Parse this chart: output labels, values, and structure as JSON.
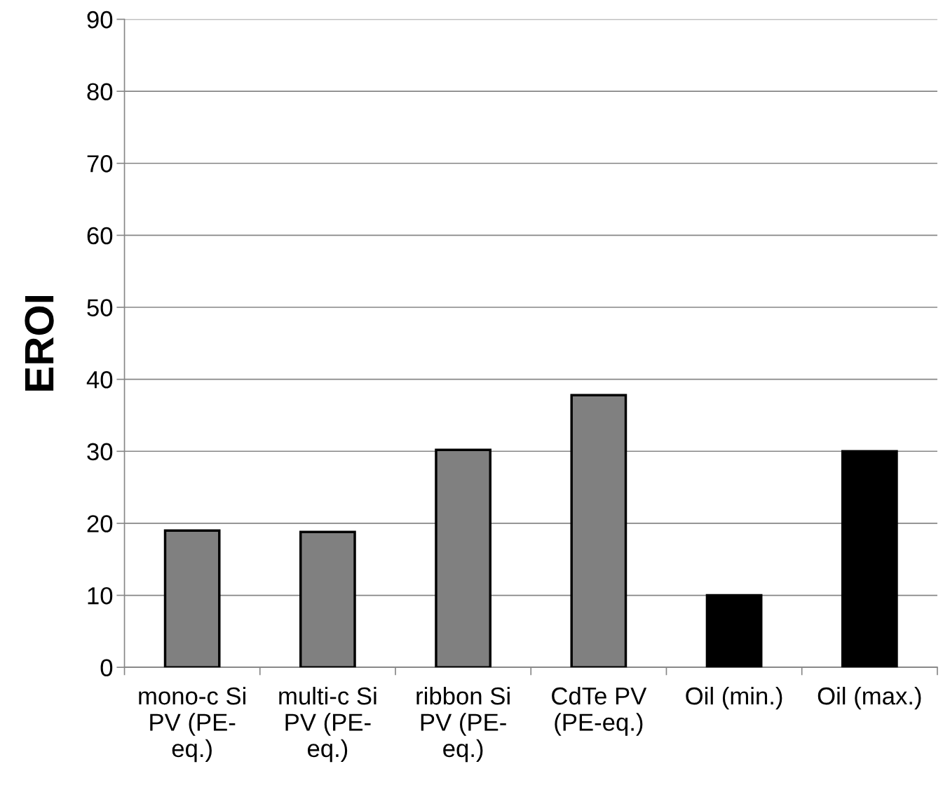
{
  "chart_data": {
    "type": "bar",
    "ylabel": "EROI",
    "categories": [
      "mono-c Si\nPV (PE-\neq.)",
      "multi-c Si\nPV (PE-\neq.)",
      "ribbon Si\nPV (PE-\neq.)",
      "CdTe PV\n(PE-eq.)",
      "Oil (min.)",
      "Oil (max.)"
    ],
    "values": [
      19,
      18.8,
      30.2,
      37.8,
      10,
      30
    ],
    "colors": [
      "#808080",
      "#808080",
      "#808080",
      "#808080",
      "#000000",
      "#000000"
    ],
    "ylim": [
      0,
      90
    ],
    "yticks": [
      0,
      10,
      20,
      30,
      40,
      50,
      60,
      70,
      80,
      90
    ],
    "grid": "y"
  }
}
